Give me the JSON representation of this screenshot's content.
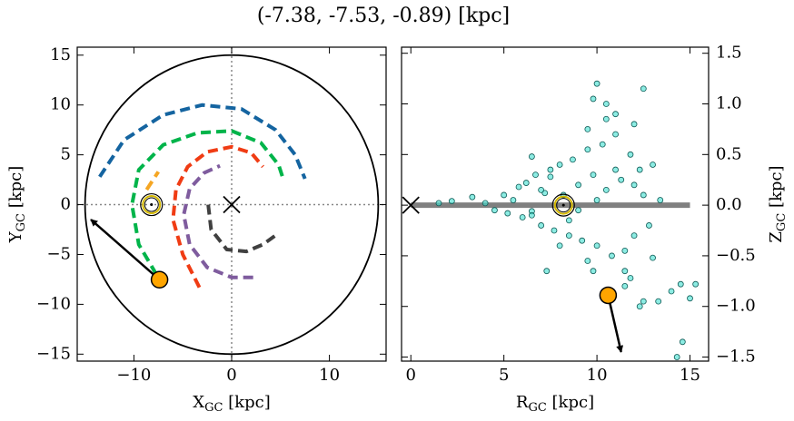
{
  "title": "(-7.38, -7.53, -0.89) [kpc]",
  "chart_data": [
    {
      "type": "line",
      "xlabel": {
        "main": "X",
        "sub": "GC",
        "unit": " [kpc]"
      },
      "ylabel": {
        "main": "Y",
        "sub": "GC",
        "unit": " [kpc]"
      },
      "xlim": [
        -15.8,
        15.8
      ],
      "ylim": [
        -15.7,
        15.8
      ],
      "xticks": [
        {
          "value": -10,
          "label": "−10"
        },
        0,
        10
      ],
      "yticks": [
        {
          "value": -15,
          "label": "−15"
        },
        {
          "value": -10,
          "label": "−10"
        },
        {
          "value": -5,
          "label": "−5"
        },
        0,
        5,
        10,
        15
      ],
      "y_axis_side": "left",
      "circle": {
        "r": 15,
        "color": "#000000"
      },
      "series": [
        {
          "color": "#1464a0",
          "x": [
            -13.5,
            -11,
            -7,
            -3,
            1,
            4.5,
            6.5,
            7.5
          ],
          "y": [
            2.8,
            6.5,
            9,
            10,
            9.6,
            7.5,
            5,
            2.6
          ]
        },
        {
          "color": "#00b44a",
          "x": [
            -7.7,
            -9.5,
            -10.2,
            -9.5,
            -7,
            -3.5,
            0,
            3,
            4.8,
            5.3
          ],
          "y": [
            -7,
            -4,
            0,
            3.5,
            6,
            7.2,
            7.4,
            6.2,
            4,
            2.5
          ]
        },
        {
          "color": "#f5a623",
          "x": [
            -8.7,
            -7.5
          ],
          "y": [
            1.5,
            3.3
          ]
        },
        {
          "color": "#f03c14",
          "x": [
            -3.3,
            -5,
            -6,
            -5.7,
            -4.5,
            -2.5,
            0,
            2,
            3.2
          ],
          "y": [
            -8.3,
            -5,
            -1.5,
            1.5,
            3.8,
            5.3,
            5.8,
            5.2,
            3.8
          ]
        },
        {
          "color": "#7f5c9e",
          "x": [
            2.2,
            0,
            -2.5,
            -4.3,
            -4.9,
            -4.3,
            -2.8,
            -1.2
          ],
          "y": [
            -7.3,
            -7.3,
            -6.3,
            -4,
            -1,
            1.6,
            3.2,
            3.9
          ]
        },
        {
          "color": "#404040",
          "x": [
            -2.4,
            -2.1,
            -0.5,
            1.5,
            3.2,
            4.6
          ],
          "y": [
            0,
            -2.5,
            -4.5,
            -4.7,
            -4,
            -3
          ]
        }
      ],
      "center": {
        "x": 0,
        "y": 0
      },
      "sun": {
        "x": -8.2,
        "y": 0
      },
      "star": {
        "x": -7.38,
        "y": -7.53,
        "color": "#ffa500"
      },
      "arrow": {
        "x": [
          -7.38,
          -14.4
        ],
        "y": [
          -7.53,
          -1.5
        ]
      }
    },
    {
      "type": "scatter",
      "xlabel": {
        "main": "R",
        "sub": "GC",
        "unit": " [kpc]"
      },
      "ylabel": {
        "main": "Z",
        "sub": "GC",
        "unit": " [kpc]"
      },
      "xlim": [
        -0.5,
        16
      ],
      "ylim": [
        -1.54,
        1.56
      ],
      "xticks": [
        0,
        5,
        10,
        15
      ],
      "yticks": [
        {
          "value": -1.5,
          "label": "−1.5"
        },
        {
          "value": -1,
          "label": "−1.0"
        },
        {
          "value": -0.5,
          "label": "−0.5"
        },
        {
          "value": 0,
          "label": "0.0"
        },
        0.5,
        {
          "value": 1,
          "label": "1.0"
        },
        1.5
      ],
      "y_axis_side": "right",
      "disk": {
        "x": [
          0,
          15
        ],
        "y": [
          0,
          0
        ],
        "color": "#808080"
      },
      "series": [
        {
          "color": "#40e0d0",
          "x": [
            3.3,
            4.0,
            4.5,
            5.0,
            5.2,
            5.5,
            5.8,
            6.0,
            6.2,
            6.5,
            6.7,
            7.0,
            7.2,
            7.5,
            7.7,
            8.0,
            8.2,
            8.5,
            8.7,
            9.0,
            9.2,
            9.5,
            9.8,
            10.0,
            10.3,
            10.5,
            10.8,
            11.0,
            11.3,
            11.5,
            11.8,
            12.0,
            12.3,
            12.5,
            12.8,
            13.0,
            13.4,
            9.5,
            10.5,
            11.5,
            7.0,
            8.5,
            9.0,
            10.0,
            11.0,
            12.0,
            6.5,
            7.5,
            8.0,
            9.5,
            10.0,
            10.5,
            12.5,
            12.0,
            11.0,
            9.8,
            6.5,
            7.3,
            9.8,
            12.5,
            13.3,
            14.0,
            15.0,
            14.6,
            14.3,
            12.3,
            11.5,
            13.0,
            11.8,
            2.2,
            1.5,
            14.5,
            15.3
          ],
          "y": [
            0.08,
            0.02,
            -0.05,
            0.1,
            -0.08,
            0.05,
            0.18,
            -0.12,
            0.22,
            -0.06,
            0.3,
            -0.2,
            0.12,
            0.35,
            -0.25,
            0.4,
            0.1,
            -0.3,
            0.45,
            0.2,
            -0.35,
            0.55,
            0.3,
            -0.4,
            0.6,
            0.15,
            -0.5,
            0.7,
            0.25,
            -0.45,
            0.5,
            -0.3,
            0.35,
            0.1,
            -0.2,
            0.4,
            0.05,
            0.75,
            0.85,
            -0.65,
            0.15,
            -0.15,
            -0.05,
            0.05,
            0.35,
            0.2,
            -0.1,
            0.28,
            -0.4,
            -0.55,
            1.2,
            1.0,
            1.15,
            0.8,
            0.9,
            1.05,
            0.48,
            -0.65,
            -0.65,
            -0.95,
            -0.95,
            -0.85,
            -0.92,
            -1.35,
            -1.5,
            -1.0,
            -0.8,
            -0.52,
            -0.72,
            0.04,
            0.02,
            -0.78,
            -0.78
          ]
        }
      ],
      "center": {
        "x": 0,
        "y": 0
      },
      "sun": {
        "x": 8.2,
        "y": 0
      },
      "star": {
        "x": 10.6,
        "y": -0.89,
        "color": "#ffa500"
      },
      "arrow": {
        "x": [
          10.6,
          11.3
        ],
        "y": [
          -0.89,
          -1.45
        ]
      }
    }
  ]
}
